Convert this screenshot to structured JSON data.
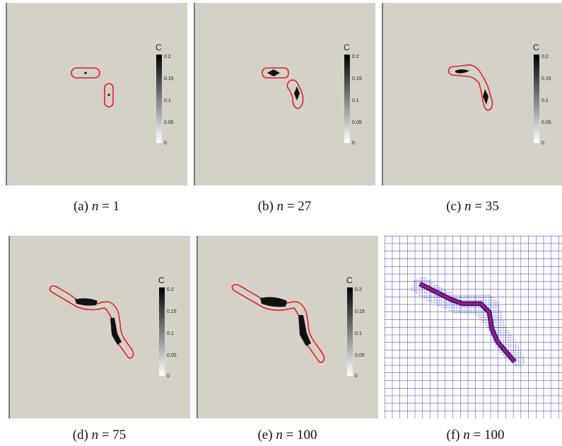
{
  "colorbar": {
    "title": "C",
    "ticks": [
      "0.2",
      "0.15",
      "0.1",
      "0.05",
      "0"
    ]
  },
  "panels": [
    {
      "label": "(a)",
      "var": "n",
      "eq": "= 1"
    },
    {
      "label": "(b)",
      "var": "n",
      "eq": "= 27"
    },
    {
      "label": "(c)",
      "var": "n",
      "eq": "= 35"
    },
    {
      "label": "(d)",
      "var": "n",
      "eq": "= 75"
    },
    {
      "label": "(e)",
      "var": "n",
      "eq": "= 100"
    },
    {
      "label": "(f)",
      "var": "n",
      "eq": "= 100"
    }
  ],
  "colors": {
    "background": "#d4d1c8",
    "contour": "#e0202c",
    "mesh": "#2a2ab8",
    "concentration": "#111111"
  }
}
